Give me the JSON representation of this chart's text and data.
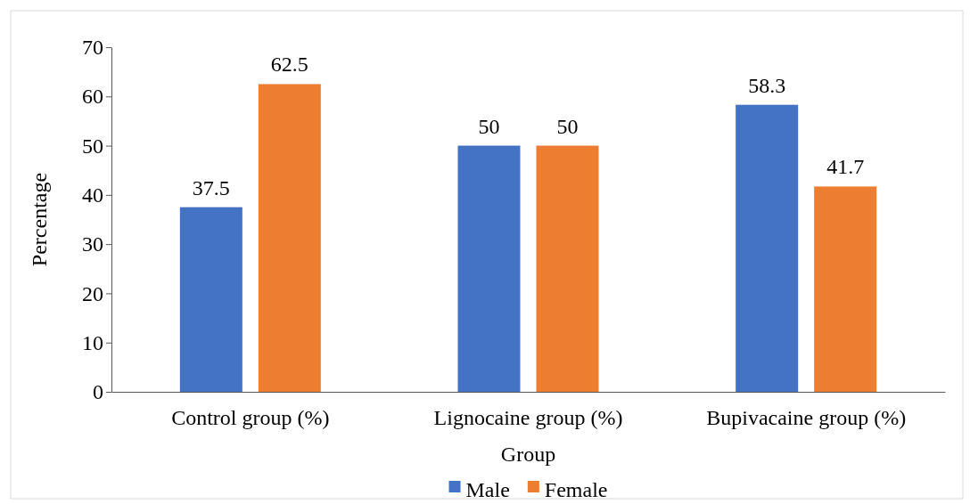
{
  "chart_data": {
    "type": "bar",
    "ylabel": "Percentage",
    "xlabel": "Group",
    "categories": [
      "Control group  (%)",
      "Lignocaine group (%)",
      "Bupivacaine group (%)"
    ],
    "series": [
      {
        "name": "Male",
        "color": "#4472c4",
        "values": [
          37.5,
          50,
          58.3
        ]
      },
      {
        "name": "Female",
        "color": "#ed7d31",
        "values": [
          62.5,
          50,
          41.7
        ]
      }
    ],
    "ylim": [
      0,
      70
    ],
    "yticks": [
      0,
      10,
      20,
      30,
      40,
      50,
      60,
      70
    ],
    "grid": false,
    "legend": "bottom",
    "data_labels": true
  }
}
